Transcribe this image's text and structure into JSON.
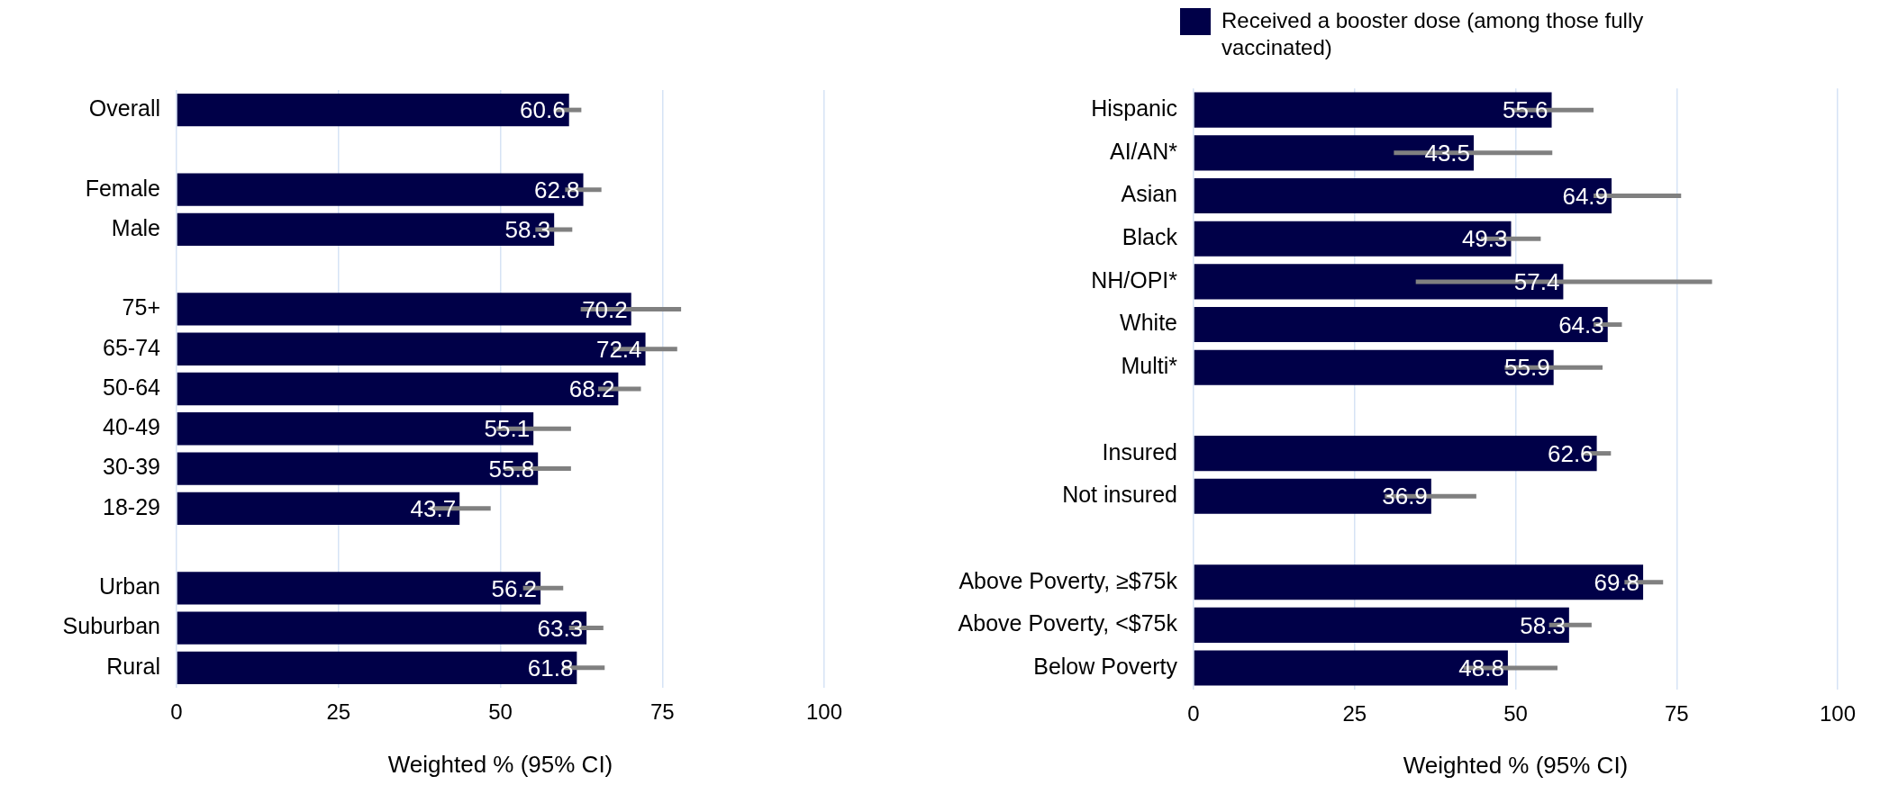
{
  "chart_data": [
    {
      "type": "bar",
      "orientation": "horizontal",
      "categories": [
        "Overall",
        null,
        "Female",
        "Male",
        null,
        "75+",
        "65-74",
        "50-64",
        "40-49",
        "30-39",
        "18-29",
        null,
        "Urban",
        "Suburban",
        "Rural"
      ],
      "series": [
        {
          "color": "#000048",
          "values": [
            60.6,
            null,
            62.8,
            58.3,
            null,
            70.2,
            72.4,
            68.2,
            55.1,
            55.8,
            43.7,
            null,
            56.2,
            63.3,
            61.8
          ],
          "errors": [
            [
              58.5,
              62.5
            ],
            null,
            [
              60.0,
              65.6
            ],
            [
              55.4,
              61.1
            ],
            null,
            [
              62.4,
              77.9
            ],
            [
              67.4,
              77.3
            ],
            [
              65.1,
              71.7
            ],
            [
              49.4,
              60.9
            ],
            [
              50.6,
              60.9
            ],
            [
              39.1,
              48.5
            ],
            null,
            [
              53.5,
              59.7
            ],
            [
              60.6,
              65.9
            ],
            [
              59.6,
              66.1
            ]
          ]
        }
      ],
      "xlim": [
        0,
        100
      ],
      "xticks": [
        0,
        25,
        50,
        75,
        100
      ],
      "xlabel": "Weighted % (95% CI)",
      "grid": "x",
      "data_labels": true,
      "legend": false
    },
    {
      "type": "bar",
      "orientation": "horizontal",
      "categories": [
        "Hispanic",
        "AI/AN*",
        "Asian",
        "Black",
        "NH/OPI*",
        "White",
        "Multi*",
        null,
        "Insured",
        "Not insured",
        null,
        "Above Poverty, ≥$75k",
        "Above Poverty, <$75k",
        "Below Poverty"
      ],
      "series": [
        {
          "name": "Received a booster dose (among those fully vaccinated)",
          "color": "#000048",
          "values": [
            55.6,
            43.5,
            64.9,
            49.3,
            57.4,
            64.3,
            55.9,
            null,
            62.6,
            36.9,
            null,
            69.8,
            58.3,
            48.8
          ],
          "errors": [
            [
              49.4,
              62.1
            ],
            [
              31.1,
              55.7
            ],
            [
              62.1,
              75.7
            ],
            [
              44.6,
              53.9
            ],
            [
              34.5,
              80.5
            ],
            [
              62.1,
              66.5
            ],
            [
              48.3,
              63.5
            ],
            null,
            [
              60.5,
              64.8
            ],
            [
              29.7,
              43.9
            ],
            null,
            [
              66.9,
              72.9
            ],
            [
              55.2,
              61.8
            ],
            [
              41.9,
              56.5
            ]
          ]
        }
      ],
      "xlim": [
        0,
        100
      ],
      "xticks": [
        0,
        25,
        50,
        75,
        100
      ],
      "xlabel": "Weighted % (95% CI)",
      "grid": "x",
      "data_labels": true,
      "legend": "top"
    }
  ]
}
